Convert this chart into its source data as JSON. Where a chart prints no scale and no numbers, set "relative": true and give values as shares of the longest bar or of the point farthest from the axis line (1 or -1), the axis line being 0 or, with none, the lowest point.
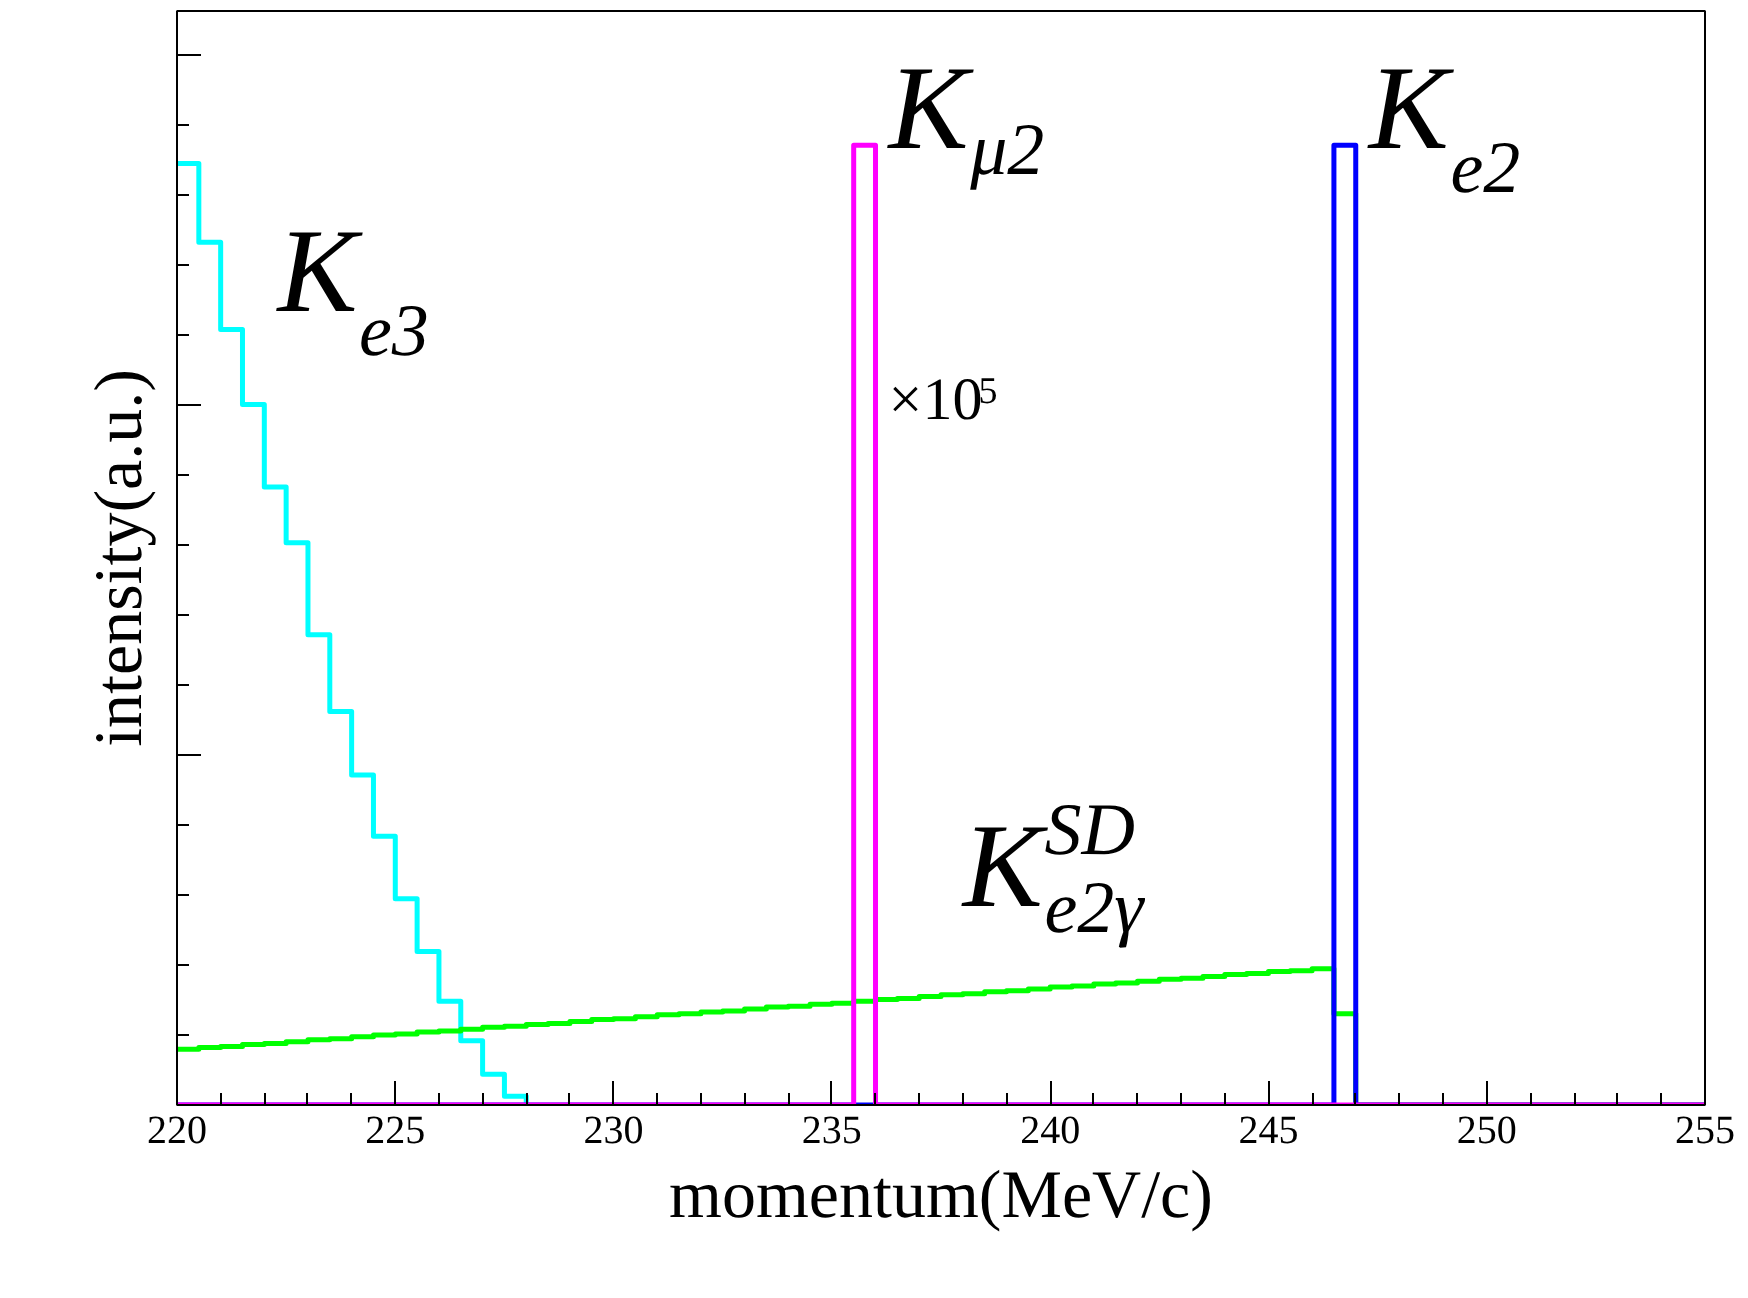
{
  "chart_data": {
    "type": "step",
    "relative": true,
    "xlabel": "momentum(MeV/c)",
    "ylabel": "intensity(a.u.)",
    "xlim": [
      220,
      255
    ],
    "xticks": [
      220,
      225,
      230,
      235,
      240,
      245,
      250,
      255
    ],
    "grid": false,
    "annotations": [
      "K$_{e3}$",
      "K$_{μ2}$",
      "×10$^{5}$",
      "K$_{e2}$",
      "K$^{SD}$$_{e2γ}$"
    ],
    "series": [
      {
        "color": "#00ffff",
        "x": [
          220,
          220.5,
          221,
          221.5,
          222,
          222.5,
          223,
          223.5,
          224,
          224.5,
          225,
          225.5,
          226,
          226.5,
          227,
          227.5,
          228
        ],
        "values": [
          0.981,
          0.899,
          0.808,
          0.73,
          0.644,
          0.586,
          0.49,
          0.41,
          0.344,
          0.28,
          0.215,
          0.16,
          0.108,
          0.067,
          0.032,
          0.009,
          0
        ]
      },
      {
        "color": "#00ff00",
        "x": [
          220,
          220.5,
          221,
          221.5,
          222,
          222.5,
          223,
          223.5,
          224,
          224.5,
          225,
          225.5,
          226,
          226.5,
          227,
          227.5,
          228,
          228.5,
          229,
          229.5,
          230,
          230.5,
          231,
          231.5,
          232,
          232.5,
          233,
          233.5,
          234,
          234.5,
          235,
          235.5,
          236,
          236.5,
          237,
          237.5,
          238,
          238.5,
          239,
          239.5,
          240,
          240.5,
          241,
          241.5,
          242,
          242.5,
          243,
          243.5,
          244,
          244.5,
          245,
          245.5,
          246,
          246.5,
          247,
          255
        ],
        "values": [
          0.058,
          0.06,
          0.061,
          0.063,
          0.064,
          0.066,
          0.068,
          0.069,
          0.071,
          0.073,
          0.074,
          0.076,
          0.077,
          0.079,
          0.081,
          0.082,
          0.084,
          0.085,
          0.087,
          0.089,
          0.09,
          0.092,
          0.094,
          0.095,
          0.097,
          0.098,
          0.1,
          0.102,
          0.103,
          0.105,
          0.106,
          0.108,
          0.11,
          0.111,
          0.113,
          0.115,
          0.116,
          0.118,
          0.119,
          0.121,
          0.123,
          0.124,
          0.126,
          0.127,
          0.129,
          0.131,
          0.132,
          0.134,
          0.136,
          0.137,
          0.139,
          0.14,
          0.142,
          0.095,
          0,
          0
        ]
      },
      {
        "color": "#0000ff",
        "x": [
          220,
          246.5,
          247,
          255
        ],
        "values": [
          0,
          1,
          0,
          0
        ]
      },
      {
        "color": "#ff00ff",
        "x": [
          220,
          235.5,
          236,
          255
        ],
        "values": [
          0,
          1,
          0,
          0
        ]
      }
    ]
  }
}
